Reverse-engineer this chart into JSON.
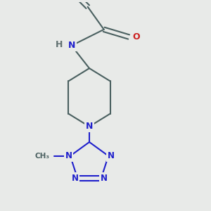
{
  "bg_color": "#e8eae8",
  "bond_color": "#4a6060",
  "N_color": "#2020cc",
  "O_color": "#cc2020",
  "H_color": "#607070",
  "lw": 1.5,
  "dpi": 100,
  "figsize": [
    3.0,
    3.0
  ],
  "xlim": [
    -1.5,
    2.5
  ],
  "ylim": [
    -3.2,
    3.2
  ]
}
